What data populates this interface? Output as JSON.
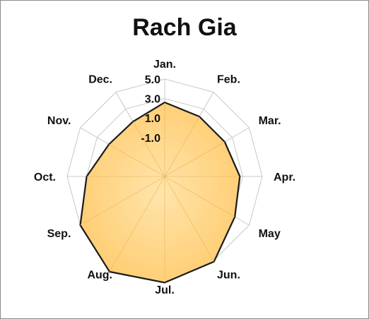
{
  "chart_data": {
    "type": "radar",
    "title": "Rach Gia",
    "categories": [
      "Jan.",
      "Feb.",
      "Mar.",
      "Apr.",
      "May",
      "Jun.",
      "Jul.",
      "Aug.",
      "Sep.",
      "Oct.",
      "Nov.",
      "Dec."
    ],
    "series": [
      {
        "values": [
          2.6,
          2.1,
          2.1,
          2.7,
          3.3,
          5.1,
          5.9,
          6.3,
          5.0,
          3.0,
          1.6,
          1.5
        ]
      }
    ],
    "axis": {
      "min": -5.0,
      "max": 5.0,
      "ticks": [
        -1.0,
        1.0,
        3.0,
        5.0
      ],
      "tick_labels": [
        "-1.0",
        "1.0",
        "3.0",
        "5.0"
      ]
    },
    "grid": true,
    "legend": "none",
    "colors": {
      "fill": "#ffc866",
      "fill_light": "#ffe3a6",
      "stroke": "#1a1a1a",
      "grid": "#c8c8c8"
    }
  }
}
